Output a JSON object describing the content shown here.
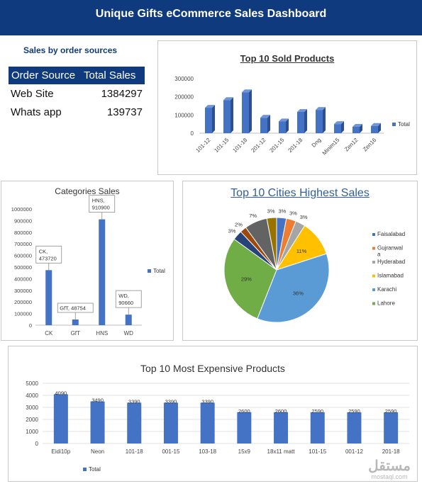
{
  "header": {
    "title": "Unique Gifts eCommerce Sales Dashboard"
  },
  "order_sources": {
    "title": "Sales by order sources",
    "columns": [
      "Order Source",
      "Total Sales"
    ],
    "rows": [
      {
        "source": "Web Site",
        "total": "1384297"
      },
      {
        "source": "Whats app",
        "total": "139737"
      }
    ]
  },
  "watermark": {
    "arabic": "مستقل",
    "latin": "mostaql.com"
  },
  "colors": {
    "header": "#0f3a7d",
    "bar": "#4472c4",
    "bar3d_side": "#2c4f91",
    "bar3d_top": "#6f95d6"
  },
  "chart_data": [
    {
      "id": "top_sold",
      "type": "bar",
      "title": "Top 10 Sold Products",
      "categories": [
        "101-12",
        "101-15",
        "101-18",
        "201-12",
        "201-15",
        "201-18",
        "Dng",
        "Minim15",
        "Zen12",
        "Zen16"
      ],
      "values": [
        140000,
        182000,
        225000,
        85000,
        65000,
        117000,
        128000,
        50000,
        35000,
        40000
      ],
      "ylim": [
        0,
        300000
      ],
      "yticks": [
        "0",
        "100000",
        "200000",
        "300000"
      ],
      "legend": "Total",
      "legend_position": "right",
      "style": "3d-column"
    },
    {
      "id": "categories",
      "type": "bar",
      "title": "Categories Sales",
      "categories": [
        "CK",
        "GfT",
        "HNS",
        "WD"
      ],
      "values": [
        473720,
        48754,
        910900,
        90660
      ],
      "data_labels": [
        "CK, 473720",
        "GfT, 48754",
        "HNS, 910900",
        "WD, 90660"
      ],
      "ylim": [
        0,
        1000000
      ],
      "yticks": [
        "0",
        "100000",
        "200000",
        "300000",
        "400000",
        "500000",
        "600000",
        "700000",
        "800000",
        "900000",
        "1000000"
      ],
      "legend": "Total",
      "legend_position": "right"
    },
    {
      "id": "cities",
      "type": "pie",
      "title": "Top 10 Cities Highest Sales",
      "slices": [
        {
          "label": "Faisalabad",
          "value": 3,
          "text": "3%",
          "color": "#4472c4"
        },
        {
          "label": "Gujranwala",
          "value": 3,
          "text": "3%",
          "color": "#ed7d31"
        },
        {
          "label": "Hyderabad",
          "value": 3,
          "text": "3%",
          "color": "#a5a5a5"
        },
        {
          "label": "Islamabad",
          "value": 11,
          "text": "11%",
          "color": "#ffc000"
        },
        {
          "label": "Karachi",
          "value": 36,
          "text": "36%",
          "color": "#5b9bd5"
        },
        {
          "label": "Lahore",
          "value": 29,
          "text": "29%",
          "color": "#70ad47"
        },
        {
          "label": "",
          "value": 3,
          "text": "3%",
          "color": "#264478"
        },
        {
          "label": "",
          "value": 2,
          "text": "2%",
          "color": "#9e480e"
        },
        {
          "label": "",
          "value": 7,
          "text": "7%",
          "color": "#636363"
        },
        {
          "label": "",
          "value": 3,
          "text": "3%",
          "color": "#997300"
        }
      ],
      "legend": [
        "Faisalabad",
        "Gujranwal a",
        "Hyderabad",
        "Islamabad",
        "Karachi",
        "Lahore"
      ],
      "legend_position": "right"
    },
    {
      "id": "expensive",
      "type": "bar",
      "title": "Top 10 Most Expensive Products",
      "categories": [
        "Eidi10p",
        "Neon",
        "101-18",
        "001-15",
        "103-18",
        "15x9",
        "18x11 matt",
        "101-15",
        "001-12",
        "201-18"
      ],
      "values": [
        4090,
        3490,
        3390,
        3390,
        3390,
        2600,
        2600,
        2590,
        2590,
        2590
      ],
      "ylim": [
        0,
        5000
      ],
      "yticks": [
        "0",
        "1000",
        "2000",
        "3000",
        "4000",
        "5000"
      ],
      "legend": "Total",
      "legend_position": "bottom-left",
      "grid": true
    }
  ]
}
